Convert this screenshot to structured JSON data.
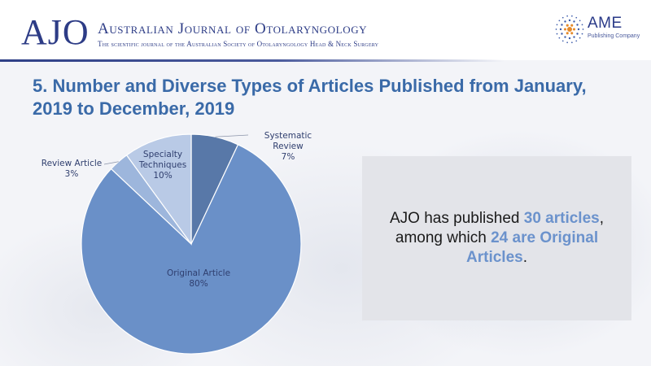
{
  "header": {
    "logo_text": "AJO",
    "journal_title": "Australian Journal of Otolaryngology",
    "journal_subtitle": "The scientific journal of the Australian Society of Otolaryngology Head & Neck Surgery",
    "publisher_name": "AME",
    "publisher_sub": "Publishing Company",
    "brand_color": "#2d3c86"
  },
  "slide": {
    "title_line1": "5. Number and Diverse Types of Articles Published from January,",
    "title_line2": "2019 to December, 2019"
  },
  "chart_data": {
    "type": "pie",
    "title": "",
    "slices": [
      {
        "name": "Systematic Review",
        "label_lines": [
          "Systematic",
          "Review"
        ],
        "value_label": "7%",
        "value": 7,
        "color": "#5878a8"
      },
      {
        "name": "Original Article",
        "label_lines": [
          "Original Article"
        ],
        "value_label": "80%",
        "value": 80,
        "color": "#6a90c8"
      },
      {
        "name": "Review Article",
        "label_lines": [
          "Review Article"
        ],
        "value_label": "3%",
        "value": 3,
        "color": "#9db6dc"
      },
      {
        "name": "Specialty Techniques",
        "label_lines": [
          "Specialty",
          "Techniques"
        ],
        "value_label": "10%",
        "value": 10,
        "color": "#b9cae6"
      }
    ]
  },
  "callout": {
    "part1": "AJO has published ",
    "highlight1": "30 articles",
    "part2": ", among which ",
    "highlight2": "24 are Original Articles",
    "part3": "."
  }
}
